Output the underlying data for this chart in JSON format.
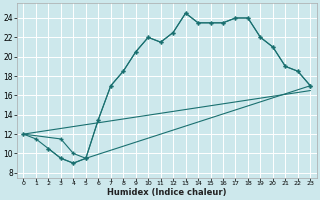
{
  "xlabel": "Humidex (Indice chaleur)",
  "bg_color": "#cde8ec",
  "grid_color": "#ffffff",
  "line_color": "#1a7070",
  "xlim": [
    -0.5,
    23.5
  ],
  "ylim": [
    7.5,
    25.5
  ],
  "xticks": [
    0,
    1,
    2,
    3,
    4,
    5,
    6,
    7,
    8,
    9,
    10,
    11,
    12,
    13,
    14,
    15,
    16,
    17,
    18,
    19,
    20,
    21,
    22,
    23
  ],
  "yticks": [
    8,
    10,
    12,
    14,
    16,
    18,
    20,
    22,
    24
  ],
  "line1_x": [
    0,
    1,
    2,
    3,
    4,
    5,
    6,
    7,
    8,
    9,
    10,
    11,
    12,
    13,
    14,
    15,
    16,
    17,
    18,
    19,
    20,
    21,
    22,
    23
  ],
  "line1_y": [
    12,
    11.5,
    10.5,
    9.5,
    9,
    9.5,
    13.5,
    17,
    18.5,
    20.5,
    22,
    21.5,
    22.5,
    24.5,
    23.5,
    23.5,
    23.5,
    24,
    24,
    22,
    21,
    19,
    18.5,
    17
  ],
  "line2_x": [
    2,
    3,
    4,
    5,
    6,
    7,
    8,
    9,
    10,
    11,
    12,
    13,
    14,
    15,
    16,
    17,
    18,
    19,
    20,
    21,
    22,
    23
  ],
  "line2_y": [
    10.5,
    9.5,
    9,
    9.5,
    13.5,
    17,
    18.5,
    20.5,
    22,
    21.5,
    22.5,
    24.5,
    23.5,
    23.5,
    23.5,
    24,
    24,
    22,
    21,
    19,
    18.5,
    17
  ],
  "line3_x": [
    0,
    3,
    4,
    5,
    23
  ],
  "line3_y": [
    12,
    11.5,
    10,
    9.5,
    17
  ],
  "line4_x": [
    0,
    23
  ],
  "line4_y": [
    12,
    16.5
  ]
}
